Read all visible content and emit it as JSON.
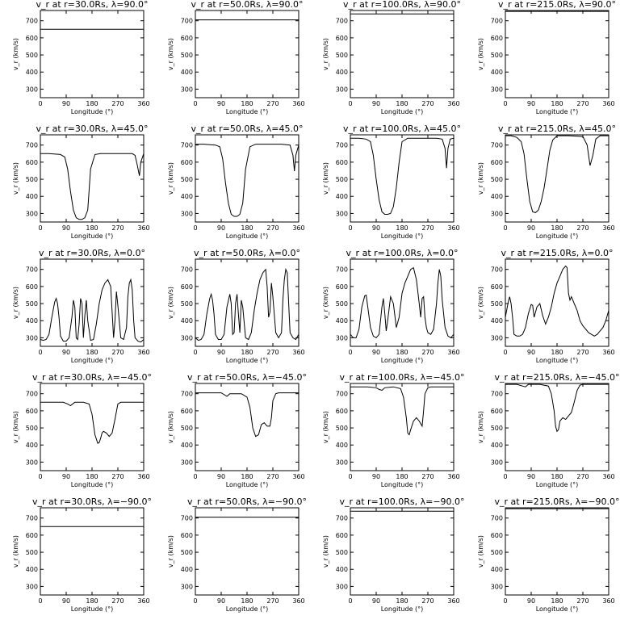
{
  "chart_data": {
    "type": "line",
    "layout": "5 rows x 4 columns grid of panels",
    "xlabel": "Longitude (°)",
    "ylabel": "v_r (km/s)",
    "xlim": [
      0,
      360
    ],
    "ylim": [
      250,
      760
    ],
    "xticks": [
      0,
      90,
      180,
      270,
      360
    ],
    "yticks": [
      300,
      400,
      500,
      600,
      700
    ],
    "panels": [
      {
        "title": "v_r at r=30.0Rs, λ=90.0°",
        "x": [
          0,
          360
        ],
        "y": [
          650,
          650
        ]
      },
      {
        "title": "v_r at r=50.0Rs, λ=90.0°",
        "x": [
          0,
          360
        ],
        "y": [
          705,
          705
        ]
      },
      {
        "title": "v_r at r=100.0Rs, λ=90.0°",
        "x": [
          0,
          360
        ],
        "y": [
          740,
          740
        ]
      },
      {
        "title": "v_r at r=215.0Rs, λ=90.0°",
        "x": [
          0,
          360
        ],
        "y": [
          755,
          755
        ]
      },
      {
        "title": "v_r at r=30.0Rs, λ=45.0°",
        "x": [
          0,
          30,
          70,
          85,
          95,
          105,
          115,
          125,
          135,
          145,
          155,
          165,
          175,
          190,
          210,
          250,
          300,
          320,
          330,
          338,
          345,
          350,
          360
        ],
        "y": [
          650,
          650,
          645,
          630,
          560,
          430,
          320,
          275,
          265,
          265,
          275,
          320,
          560,
          645,
          650,
          650,
          650,
          650,
          640,
          580,
          520,
          600,
          650
        ]
      },
      {
        "title": "v_r at r=50.0Rs, λ=45.0°",
        "x": [
          0,
          30,
          70,
          85,
          95,
          105,
          115,
          125,
          135,
          145,
          155,
          165,
          175,
          190,
          210,
          250,
          300,
          330,
          340,
          345,
          350,
          360
        ],
        "y": [
          705,
          705,
          700,
          690,
          620,
          480,
          360,
          295,
          283,
          283,
          295,
          360,
          560,
          690,
          705,
          705,
          705,
          700,
          640,
          548,
          640,
          700
        ]
      },
      {
        "title": "v_r at r=100.0Rs, λ=45.0°",
        "x": [
          0,
          30,
          55,
          70,
          80,
          90,
          100,
          110,
          120,
          130,
          140,
          150,
          160,
          170,
          180,
          200,
          250,
          300,
          320,
          330,
          335,
          340,
          348,
          360
        ],
        "y": [
          740,
          740,
          735,
          720,
          640,
          500,
          380,
          310,
          295,
          295,
          300,
          340,
          450,
          600,
          720,
          740,
          740,
          740,
          735,
          680,
          565,
          680,
          735,
          740
        ]
      },
      {
        "title": "v_r at r=215.0Rs, λ=45.0°",
        "x": [
          0,
          20,
          40,
          55,
          65,
          75,
          85,
          95,
          105,
          115,
          125,
          135,
          145,
          155,
          165,
          180,
          220,
          270,
          285,
          295,
          305,
          315,
          330,
          360
        ],
        "y": [
          755,
          755,
          745,
          720,
          650,
          500,
          370,
          310,
          305,
          320,
          370,
          450,
          560,
          670,
          730,
          755,
          755,
          750,
          700,
          580,
          640,
          735,
          755,
          755
        ]
      },
      {
        "title": "v_r at r=30.0Rs, λ=0.0°",
        "x": [
          0,
          10,
          20,
          30,
          40,
          50,
          55,
          60,
          65,
          70,
          80,
          90,
          100,
          110,
          115,
          120,
          125,
          130,
          135,
          140,
          145,
          150,
          155,
          160,
          165,
          175,
          185,
          195,
          205,
          215,
          225,
          235,
          245,
          250,
          255,
          260,
          265,
          270,
          280,
          290,
          300,
          305,
          310,
          315,
          320,
          325,
          330,
          340,
          350,
          360
        ],
        "y": [
          290,
          285,
          290,
          320,
          420,
          510,
          530,
          500,
          420,
          310,
          280,
          280,
          300,
          420,
          520,
          480,
          300,
          290,
          380,
          530,
          500,
          300,
          430,
          520,
          400,
          285,
          290,
          380,
          500,
          580,
          620,
          640,
          600,
          450,
          300,
          400,
          570,
          490,
          300,
          290,
          360,
          540,
          620,
          640,
          580,
          400,
          300,
          280,
          275,
          290
        ]
      },
      {
        "title": "v_r at r=50.0Rs, λ=0.0°",
        "x": [
          0,
          10,
          20,
          30,
          40,
          50,
          55,
          60,
          65,
          70,
          80,
          90,
          100,
          110,
          120,
          125,
          130,
          135,
          140,
          145,
          150,
          155,
          160,
          165,
          175,
          185,
          195,
          205,
          215,
          225,
          235,
          245,
          250,
          255,
          260,
          265,
          270,
          280,
          290,
          300,
          305,
          310,
          315,
          320,
          325,
          330,
          340,
          350,
          360
        ],
        "y": [
          300,
          285,
          290,
          320,
          440,
          530,
          555,
          520,
          440,
          320,
          290,
          290,
          320,
          480,
          555,
          500,
          320,
          330,
          500,
          555,
          440,
          330,
          520,
          480,
          300,
          290,
          330,
          460,
          560,
          640,
          680,
          700,
          600,
          420,
          450,
          620,
          540,
          330,
          300,
          330,
          520,
          640,
          700,
          680,
          500,
          330,
          300,
          290,
          320
        ]
      },
      {
        "title": "v_r at r=100.0Rs, λ=0.0°",
        "x": [
          0,
          10,
          20,
          30,
          40,
          50,
          55,
          60,
          70,
          80,
          90,
          100,
          110,
          115,
          120,
          125,
          130,
          140,
          150,
          160,
          170,
          180,
          190,
          200,
          210,
          220,
          230,
          240,
          245,
          250,
          255,
          260,
          265,
          270,
          280,
          290,
          300,
          305,
          310,
          315,
          320,
          330,
          340,
          350,
          360
        ],
        "y": [
          320,
          300,
          300,
          350,
          480,
          545,
          550,
          490,
          360,
          310,
          300,
          320,
          480,
          530,
          440,
          340,
          400,
          540,
          500,
          360,
          420,
          560,
          620,
          660,
          700,
          710,
          640,
          500,
          420,
          530,
          540,
          420,
          360,
          330,
          320,
          350,
          500,
          620,
          700,
          660,
          520,
          360,
          310,
          300,
          320
        ]
      },
      {
        "title": "v_r at r=215.0Rs, λ=0.0°",
        "x": [
          0,
          10,
          15,
          20,
          25,
          30,
          40,
          50,
          60,
          70,
          80,
          90,
          95,
          100,
          110,
          120,
          130,
          140,
          150,
          160,
          170,
          180,
          190,
          200,
          210,
          215,
          220,
          225,
          230,
          240,
          250,
          260,
          270,
          280,
          290,
          300,
          310,
          320,
          330,
          340,
          350,
          360
        ],
        "y": [
          420,
          510,
          540,
          500,
          420,
          320,
          310,
          310,
          320,
          360,
          440,
          495,
          490,
          420,
          480,
          500,
          430,
          380,
          420,
          480,
          560,
          620,
          660,
          700,
          720,
          710,
          560,
          520,
          540,
          500,
          460,
          400,
          370,
          350,
          330,
          320,
          310,
          320,
          340,
          360,
          400,
          460
        ]
      },
      {
        "title": "v_r at r=30.0Rs, λ=−45.0°",
        "x": [
          0,
          50,
          80,
          95,
          105,
          120,
          150,
          170,
          180,
          190,
          200,
          205,
          210,
          215,
          220,
          230,
          240,
          250,
          260,
          270,
          280,
          290,
          300,
          320,
          360
        ],
        "y": [
          650,
          650,
          650,
          640,
          630,
          650,
          650,
          640,
          580,
          460,
          410,
          415,
          440,
          470,
          480,
          470,
          450,
          470,
          550,
          640,
          650,
          650,
          650,
          650,
          650
        ]
      },
      {
        "title": "v_r at r=50.0Rs, λ=−45.0°",
        "x": [
          0,
          60,
          90,
          110,
          120,
          140,
          160,
          180,
          190,
          200,
          210,
          220,
          225,
          230,
          240,
          250,
          260,
          265,
          270,
          280,
          290,
          300,
          360
        ],
        "y": [
          705,
          705,
          705,
          685,
          700,
          700,
          700,
          680,
          620,
          500,
          450,
          460,
          490,
          520,
          530,
          510,
          510,
          560,
          660,
          700,
          705,
          705,
          705
        ]
      },
      {
        "title": "v_r at r=100.0Rs, λ=−45.0°",
        "x": [
          0,
          60,
          90,
          100,
          110,
          120,
          150,
          175,
          185,
          195,
          200,
          205,
          210,
          220,
          230,
          240,
          250,
          255,
          260,
          270,
          280,
          300,
          360
        ],
        "y": [
          740,
          740,
          735,
          725,
          720,
          735,
          740,
          730,
          680,
          560,
          470,
          460,
          490,
          540,
          560,
          540,
          510,
          600,
          700,
          735,
          740,
          740,
          740
        ]
      },
      {
        "title": "v_r at r=215.0Rs, λ=−45.0°",
        "x": [
          0,
          40,
          60,
          70,
          80,
          90,
          120,
          150,
          160,
          170,
          175,
          180,
          185,
          190,
          200,
          210,
          220,
          230,
          240,
          250,
          260,
          270,
          280,
          300,
          360
        ],
        "y": [
          755,
          755,
          745,
          740,
          755,
          755,
          755,
          745,
          700,
          600,
          510,
          480,
          490,
          540,
          560,
          550,
          570,
          590,
          650,
          720,
          750,
          755,
          755,
          755,
          755
        ]
      },
      {
        "title": "v_r at r=30.0Rs, λ=−90.0°",
        "x": [
          0,
          360
        ],
        "y": [
          650,
          650
        ]
      },
      {
        "title": "v_r at r=50.0Rs, λ=−90.0°",
        "x": [
          0,
          360
        ],
        "y": [
          705,
          705
        ]
      },
      {
        "title": "v_r at r=100.0Rs, λ=−90.0°",
        "x": [
          0,
          360
        ],
        "y": [
          740,
          740
        ]
      },
      {
        "title": "v_r at r=215.0Rs, λ=−90.0°",
        "x": [
          0,
          360
        ],
        "y": [
          755,
          755
        ]
      }
    ]
  }
}
